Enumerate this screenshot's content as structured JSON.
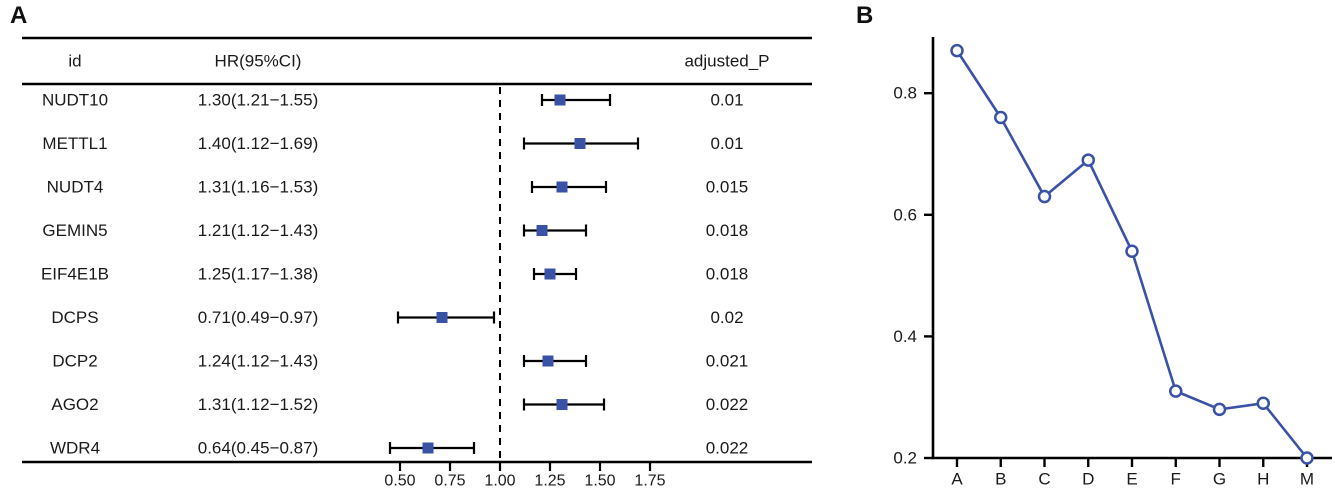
{
  "panels": {
    "a": {
      "label": "A"
    },
    "b": {
      "label": "B"
    }
  },
  "colors": {
    "marker_blue": "#3a52a5",
    "axis_black": "#000000",
    "text_black": "#1a1a1a"
  },
  "chart_data": [
    {
      "type": "forest",
      "panel": "A",
      "columns": [
        "id",
        "HR(95%CI)",
        "adjusted_P"
      ],
      "rows": [
        {
          "id": "NUDT10",
          "hr_ci": "1.30(1.21−1.55)",
          "adjusted_p": "0.01",
          "hr": 1.3,
          "lower": 1.21,
          "upper": 1.55
        },
        {
          "id": "METTL1",
          "hr_ci": "1.40(1.12−1.69)",
          "adjusted_p": "0.01",
          "hr": 1.4,
          "lower": 1.12,
          "upper": 1.69
        },
        {
          "id": "NUDT4",
          "hr_ci": "1.31(1.16−1.53)",
          "adjusted_p": "0.015",
          "hr": 1.31,
          "lower": 1.16,
          "upper": 1.53
        },
        {
          "id": "GEMIN5",
          "hr_ci": "1.21(1.12−1.43)",
          "adjusted_p": "0.018",
          "hr": 1.21,
          "lower": 1.12,
          "upper": 1.43
        },
        {
          "id": "EIF4E1B",
          "hr_ci": "1.25(1.17−1.38)",
          "adjusted_p": "0.018",
          "hr": 1.25,
          "lower": 1.17,
          "upper": 1.38
        },
        {
          "id": "DCPS",
          "hr_ci": "0.71(0.49−0.97)",
          "adjusted_p": "0.02",
          "hr": 0.71,
          "lower": 0.49,
          "upper": 0.97
        },
        {
          "id": "DCP2",
          "hr_ci": "1.24(1.12−1.43)",
          "adjusted_p": "0.021",
          "hr": 1.24,
          "lower": 1.12,
          "upper": 1.43
        },
        {
          "id": "AGO2",
          "hr_ci": "1.31(1.12−1.52)",
          "adjusted_p": "0.022",
          "hr": 1.31,
          "lower": 1.12,
          "upper": 1.52
        },
        {
          "id": "WDR4",
          "hr_ci": "0.64(0.45−0.87)",
          "adjusted_p": "0.022",
          "hr": 0.64,
          "lower": 0.45,
          "upper": 0.87
        }
      ],
      "x_axis": {
        "ticks": [
          0.5,
          0.75,
          1.0,
          1.25,
          1.5,
          1.75
        ],
        "tick_labels": [
          "0.50",
          "0.75",
          "1.00",
          "1.25",
          "1.50",
          "1.75"
        ],
        "reference_line": 1.0
      },
      "marker": "filled-square",
      "grid": false
    },
    {
      "type": "line",
      "panel": "B",
      "categories": [
        "A",
        "B",
        "C",
        "D",
        "E",
        "F",
        "G",
        "H",
        "M"
      ],
      "values": [
        0.87,
        0.76,
        0.63,
        0.69,
        0.54,
        0.31,
        0.28,
        0.29,
        0.2
      ],
      "yticks": [
        0.2,
        0.4,
        0.6,
        0.8
      ],
      "ytick_labels": [
        "0.2",
        "0.4",
        "0.6",
        "0.8"
      ],
      "ylim": [
        0.2,
        0.9
      ],
      "title": "",
      "xlabel": "",
      "ylabel": "",
      "legend": "none",
      "marker": "open-circle",
      "grid": false
    }
  ]
}
